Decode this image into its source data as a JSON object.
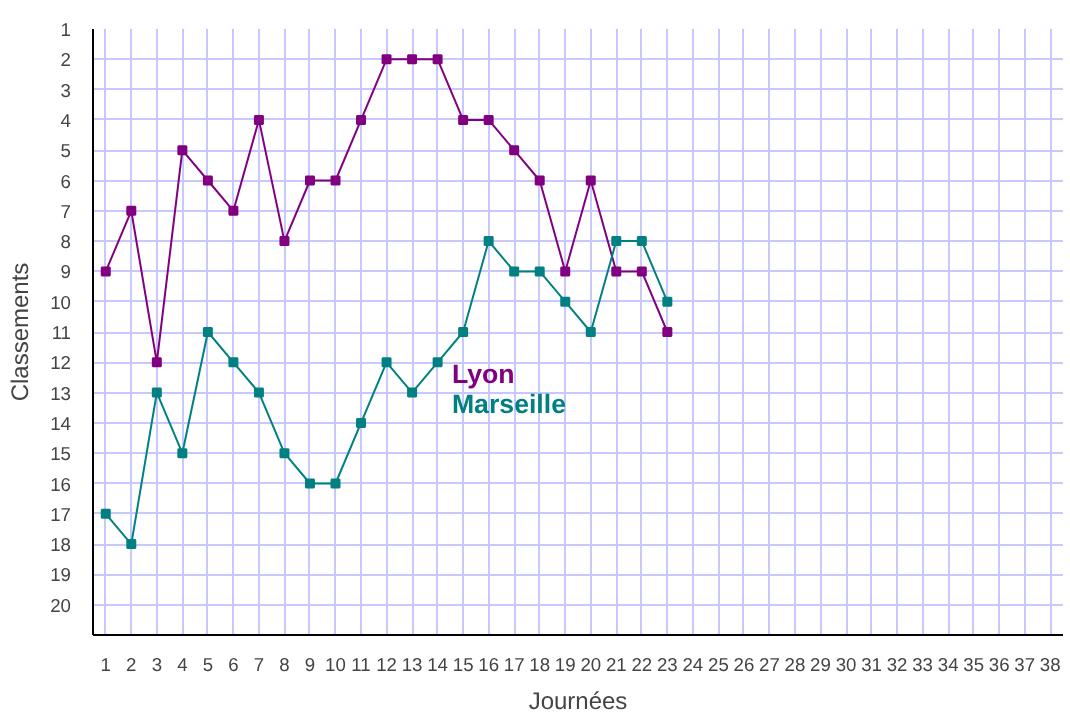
{
  "chart_data": {
    "type": "line",
    "xlabel": "Journées",
    "ylabel": "Classements",
    "x": [
      1,
      2,
      3,
      4,
      5,
      6,
      7,
      8,
      9,
      10,
      11,
      12,
      13,
      14,
      15,
      16,
      17,
      18,
      19,
      20,
      21,
      22,
      23
    ],
    "series": [
      {
        "name": "Lyon",
        "color": "#800080",
        "values": [
          9,
          7,
          12,
          5,
          6,
          7,
          4,
          8,
          6,
          6,
          4,
          2,
          2,
          2,
          4,
          4,
          5,
          6,
          9,
          6,
          9,
          9,
          11
        ]
      },
      {
        "name": "Marseille",
        "color": "#008080",
        "values": [
          17,
          18,
          13,
          15,
          11,
          12,
          13,
          15,
          16,
          16,
          14,
          12,
          13,
          12,
          11,
          8,
          9,
          9,
          10,
          11,
          8,
          8,
          10
        ]
      }
    ],
    "xlim": [
      0.5,
      38.5
    ],
    "xticks": [
      1,
      2,
      3,
      4,
      5,
      6,
      7,
      8,
      9,
      10,
      11,
      12,
      13,
      14,
      15,
      16,
      17,
      18,
      19,
      20,
      21,
      22,
      23,
      24,
      25,
      26,
      27,
      28,
      29,
      30,
      31,
      32,
      33,
      34,
      35,
      36,
      37,
      38
    ],
    "ylim": [
      21,
      1
    ],
    "yticks": [
      1,
      2,
      3,
      4,
      5,
      6,
      7,
      8,
      9,
      10,
      11,
      12,
      13,
      14,
      15,
      16,
      17,
      18,
      19,
      20
    ],
    "grid": true,
    "legend": "center",
    "marker": "square",
    "line_style": "solid"
  }
}
